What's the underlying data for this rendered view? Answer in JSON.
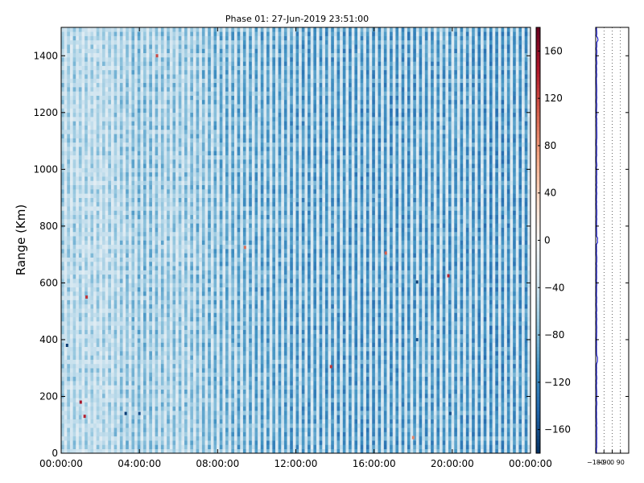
{
  "chart_data": [
    {
      "type": "heatmap",
      "title": "Phase 01: 27-Jun-2019 23:51:00",
      "ylabel": "Range (Km)",
      "xlabel": "",
      "x_ticklabels": [
        "00:00:00",
        "04:00:00",
        "08:00:00",
        "12:00:00",
        "16:00:00",
        "20:00:00",
        "00:00:00"
      ],
      "x_tick_hours": [
        0,
        4,
        8,
        12,
        16,
        20,
        24
      ],
      "xlim_hours": [
        0,
        24
      ],
      "y_ticks": [
        0,
        200,
        400,
        600,
        800,
        1000,
        1200,
        1400
      ],
      "ylim": [
        0,
        1500
      ],
      "colorbar": {
        "ticks": [
          160,
          120,
          80,
          40,
          0,
          -40,
          -80,
          -120,
          -160
        ],
        "range": [
          -180,
          180
        ],
        "colormap": "RdBu_r",
        "colors": [
          "#053061",
          "#2166ac",
          "#4393c3",
          "#92c5de",
          "#d1e5f0",
          "#f7f7f7",
          "#fddbc7",
          "#f4a582",
          "#d6604d",
          "#b2182b",
          "#67001f"
        ]
      },
      "typical_phase_by_hour": [
        {
          "hours": 0,
          "phase": -70
        },
        {
          "hours": 2,
          "phase": -60
        },
        {
          "hours": 4,
          "phase": -85
        },
        {
          "hours": 6,
          "phase": -75
        },
        {
          "hours": 8,
          "phase": -95
        },
        {
          "hours": 12,
          "phase": -110
        },
        {
          "hours": 16,
          "phase": -115
        },
        {
          "hours": 20,
          "phase": -110
        },
        {
          "hours": 22,
          "phase": -120
        },
        {
          "hours": 24,
          "phase": -115
        }
      ],
      "outliers": [
        {
          "hours": 0.3,
          "range": 380,
          "phase": -170
        },
        {
          "hours": 1.0,
          "range": 180,
          "phase": 150
        },
        {
          "hours": 1.2,
          "range": 130,
          "phase": 140
        },
        {
          "hours": 1.3,
          "range": 550,
          "phase": 130
        },
        {
          "hours": 3.3,
          "range": 140,
          "phase": -170
        },
        {
          "hours": 4.0,
          "range": 140,
          "phase": -160
        },
        {
          "hours": 4.9,
          "range": 1400,
          "phase": 120
        },
        {
          "hours": 9.4,
          "range": 725,
          "phase": 100
        },
        {
          "hours": 13.8,
          "range": 305,
          "phase": 130
        },
        {
          "hours": 16.6,
          "range": 705,
          "phase": 110
        },
        {
          "hours": 18.2,
          "range": 603,
          "phase": -170
        },
        {
          "hours": 18.2,
          "range": 400,
          "phase": -160
        },
        {
          "hours": 18.0,
          "range": 55,
          "phase": 90
        },
        {
          "hours": 19.8,
          "range": 625,
          "phase": 140
        },
        {
          "hours": 19.9,
          "range": 140,
          "phase": -160
        }
      ]
    },
    {
      "type": "line",
      "x_ticklabels": [
        "−180",
        "−90",
        "0",
        "90"
      ],
      "x_ticks": [
        -180,
        -90,
        0,
        90
      ],
      "xlim": [
        -180,
        180
      ],
      "ylim": [
        0,
        1500
      ],
      "series_color": "#0000cc",
      "typical_x": -170
    }
  ]
}
